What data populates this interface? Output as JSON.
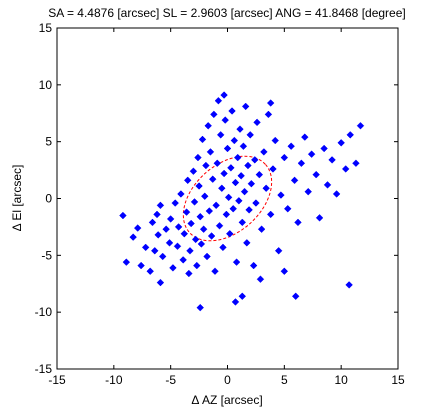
{
  "chart_data": {
    "type": "scatter",
    "title": "SA = 4.4876 [arcsec]  SL = 2.9603 [arcsec]  ANG = 41.8468 [degree]",
    "xlabel": "Δ AZ [arcsec]",
    "ylabel": "Δ El [arcsec]",
    "xlim": [
      -15,
      15
    ],
    "ylim": [
      -15,
      15
    ],
    "xticks": [
      -15,
      -10,
      -5,
      0,
      5,
      10,
      15
    ],
    "yticks": [
      -15,
      -10,
      -5,
      0,
      5,
      10,
      15
    ],
    "xtick_labels": [
      "-15",
      "-10",
      "-5",
      "0",
      "5",
      "10",
      "15"
    ],
    "ytick_labels": [
      "-15",
      "-10",
      "-5",
      "0",
      "5",
      "10",
      "15"
    ],
    "grid": false,
    "marker": "diamond",
    "colors": {
      "points": "#0000ff",
      "ellipse": "#ff0000"
    },
    "ellipse": {
      "center": [
        0,
        0
      ],
      "semi_axis_a": 4.4876,
      "semi_axis_b": 2.9603,
      "angle_deg": 41.8468
    },
    "series": [
      {
        "points": [
          [
            -9.2,
            -1.5
          ],
          [
            -8.9,
            -5.6
          ],
          [
            -8.3,
            -3.4
          ],
          [
            -7.6,
            -5.9
          ],
          [
            -7.9,
            -2.6
          ],
          [
            -7.2,
            -4.3
          ],
          [
            -6.8,
            -6.4
          ],
          [
            -6.6,
            -2.1
          ],
          [
            -6.4,
            -4.6
          ],
          [
            -6.1,
            -3.2
          ],
          [
            -6.2,
            -1.4
          ],
          [
            -5.7,
            -5.1
          ],
          [
            -5.4,
            -2.7
          ],
          [
            -5.9,
            -0.6
          ],
          [
            -5.1,
            -3.9
          ],
          [
            -5.0,
            -1.8
          ],
          [
            -4.8,
            -6.1
          ],
          [
            -4.6,
            -0.4
          ],
          [
            -4.4,
            -4.2
          ],
          [
            -4.3,
            -2.5
          ],
          [
            -4.1,
            0.4
          ],
          [
            -3.9,
            -5.4
          ],
          [
            -3.8,
            -3.1
          ],
          [
            -3.6,
            -1.2
          ],
          [
            -3.5,
            1.6
          ],
          [
            -3.4,
            -6.6
          ],
          [
            -3.3,
            -4.6
          ],
          [
            -3.2,
            -2.2
          ],
          [
            -3.0,
            2.4
          ],
          [
            -2.9,
            -0.3
          ],
          [
            -2.8,
            -3.6
          ],
          [
            -2.7,
            -5.9
          ],
          [
            -2.6,
            3.6
          ],
          [
            -2.5,
            1.1
          ],
          [
            -2.4,
            -1.6
          ],
          [
            -2.3,
            -4.0
          ],
          [
            -2.2,
            5.2
          ],
          [
            -2.1,
            -2.7
          ],
          [
            -2.0,
            0.2
          ],
          [
            -1.9,
            2.9
          ],
          [
            -1.8,
            -5.1
          ],
          [
            -1.7,
            6.4
          ],
          [
            -1.6,
            -1.1
          ],
          [
            -1.5,
            4.1
          ],
          [
            -1.4,
            -3.3
          ],
          [
            -1.3,
            1.7
          ],
          [
            -1.2,
            7.4
          ],
          [
            -1.1,
            -6.4
          ],
          [
            -1.0,
            -0.6
          ],
          [
            -0.9,
            3.1
          ],
          [
            -0.8,
            8.6
          ],
          [
            -0.7,
            -2.4
          ],
          [
            -0.6,
            5.6
          ],
          [
            -0.5,
            0.9
          ],
          [
            -0.4,
            -4.3
          ],
          [
            -0.3,
            2.2
          ],
          [
            -0.2,
            6.9
          ],
          [
            -0.1,
            -1.4
          ],
          [
            0.0,
            4.4
          ],
          [
            0.1,
            0.1
          ],
          [
            0.2,
            -3.1
          ],
          [
            0.3,
            2.7
          ],
          [
            0.4,
            7.7
          ],
          [
            0.5,
            -0.9
          ],
          [
            0.6,
            5.1
          ],
          [
            0.7,
            1.4
          ],
          [
            0.8,
            -5.6
          ],
          [
            0.9,
            3.6
          ],
          [
            1.0,
            -0.2
          ],
          [
            1.1,
            6.1
          ],
          [
            1.2,
            2.0
          ],
          [
            1.3,
            -2.1
          ],
          [
            1.4,
            4.6
          ],
          [
            1.5,
            0.6
          ],
          [
            1.6,
            8.1
          ],
          [
            1.7,
            -3.9
          ],
          [
            1.8,
            2.9
          ],
          [
            1.9,
            -1.0
          ],
          [
            2.0,
            5.6
          ],
          [
            2.1,
            1.3
          ],
          [
            2.3,
            -5.9
          ],
          [
            2.4,
            3.4
          ],
          [
            2.5,
            -0.4
          ],
          [
            2.6,
            6.7
          ],
          [
            2.8,
            2.1
          ],
          [
            3.0,
            -2.7
          ],
          [
            3.2,
            4.1
          ],
          [
            3.4,
            0.9
          ],
          [
            3.6,
            7.4
          ],
          [
            3.8,
            -1.4
          ],
          [
            4.0,
            2.6
          ],
          [
            4.2,
            5.1
          ],
          [
            4.5,
            -4.6
          ],
          [
            4.7,
            0.3
          ],
          [
            5.0,
            3.6
          ],
          [
            5.3,
            -0.9
          ],
          [
            5.6,
            4.6
          ],
          [
            5.9,
            1.6
          ],
          [
            6.2,
            -2.1
          ],
          [
            6.5,
            3.1
          ],
          [
            6.8,
            5.4
          ],
          [
            7.1,
            0.6
          ],
          [
            7.4,
            3.9
          ],
          [
            7.8,
            2.1
          ],
          [
            8.1,
            -1.7
          ],
          [
            8.5,
            4.4
          ],
          [
            8.8,
            1.2
          ],
          [
            9.2,
            3.4
          ],
          [
            9.6,
            0.4
          ],
          [
            10.0,
            4.9
          ],
          [
            10.4,
            2.6
          ],
          [
            10.8,
            5.6
          ],
          [
            11.3,
            3.1
          ],
          [
            11.7,
            6.4
          ],
          [
            10.7,
            -7.6
          ],
          [
            -0.3,
            9.1
          ],
          [
            3.8,
            8.4
          ],
          [
            6.0,
            -8.6
          ],
          [
            -2.4,
            -9.6
          ],
          [
            1.3,
            -8.6
          ],
          [
            -5.9,
            -7.4
          ],
          [
            5.0,
            -6.4
          ],
          [
            0.7,
            -9.1
          ],
          [
            2.9,
            -7.1
          ]
        ]
      }
    ]
  }
}
